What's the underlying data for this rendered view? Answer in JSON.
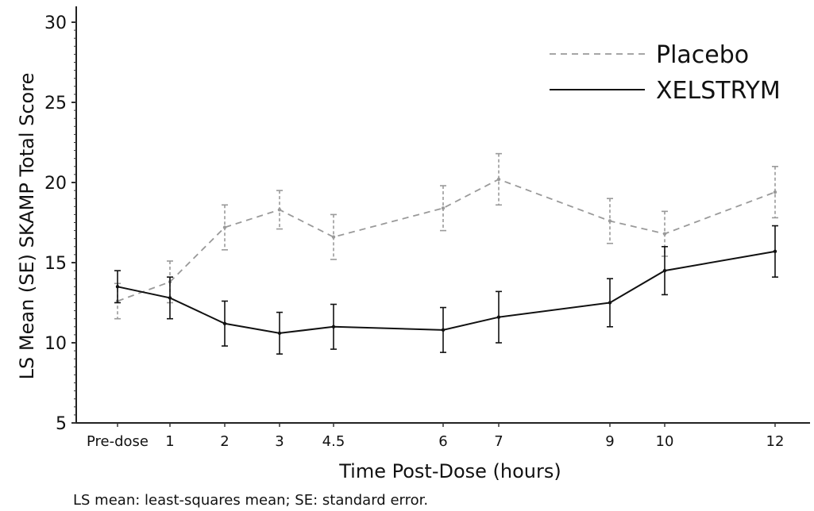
{
  "chart_data": {
    "type": "line",
    "title": "",
    "xlabel": "Time Post-Dose (hours)",
    "ylabel": "LS Mean (SE) SKAMP Total Score",
    "ylim": [
      5,
      30
    ],
    "y_ticks": [
      5,
      10,
      15,
      20,
      25,
      30
    ],
    "categories": [
      "Pre-dose",
      "1",
      "2",
      "3",
      "4.5",
      "6",
      "7",
      "9",
      "10",
      "12"
    ],
    "legend_position": "top-right",
    "footnote": "LS mean: least-squares mean; SE: standard error.",
    "series": [
      {
        "name": "Placebo",
        "line_style": "dashed",
        "color": "#9a9a9a",
        "values": [
          12.6,
          13.8,
          17.2,
          18.3,
          16.6,
          18.4,
          20.2,
          17.6,
          16.8,
          19.4
        ],
        "error": [
          1.1,
          1.3,
          1.4,
          1.2,
          1.4,
          1.4,
          1.6,
          1.4,
          1.4,
          1.6
        ]
      },
      {
        "name": "XELSTRYM",
        "line_style": "solid",
        "color": "#111111",
        "values": [
          13.5,
          12.8,
          11.2,
          10.6,
          11.0,
          10.8,
          11.6,
          12.5,
          14.5,
          15.7
        ],
        "error": [
          1.0,
          1.3,
          1.4,
          1.3,
          1.4,
          1.4,
          1.6,
          1.5,
          1.5,
          1.6
        ]
      }
    ]
  }
}
